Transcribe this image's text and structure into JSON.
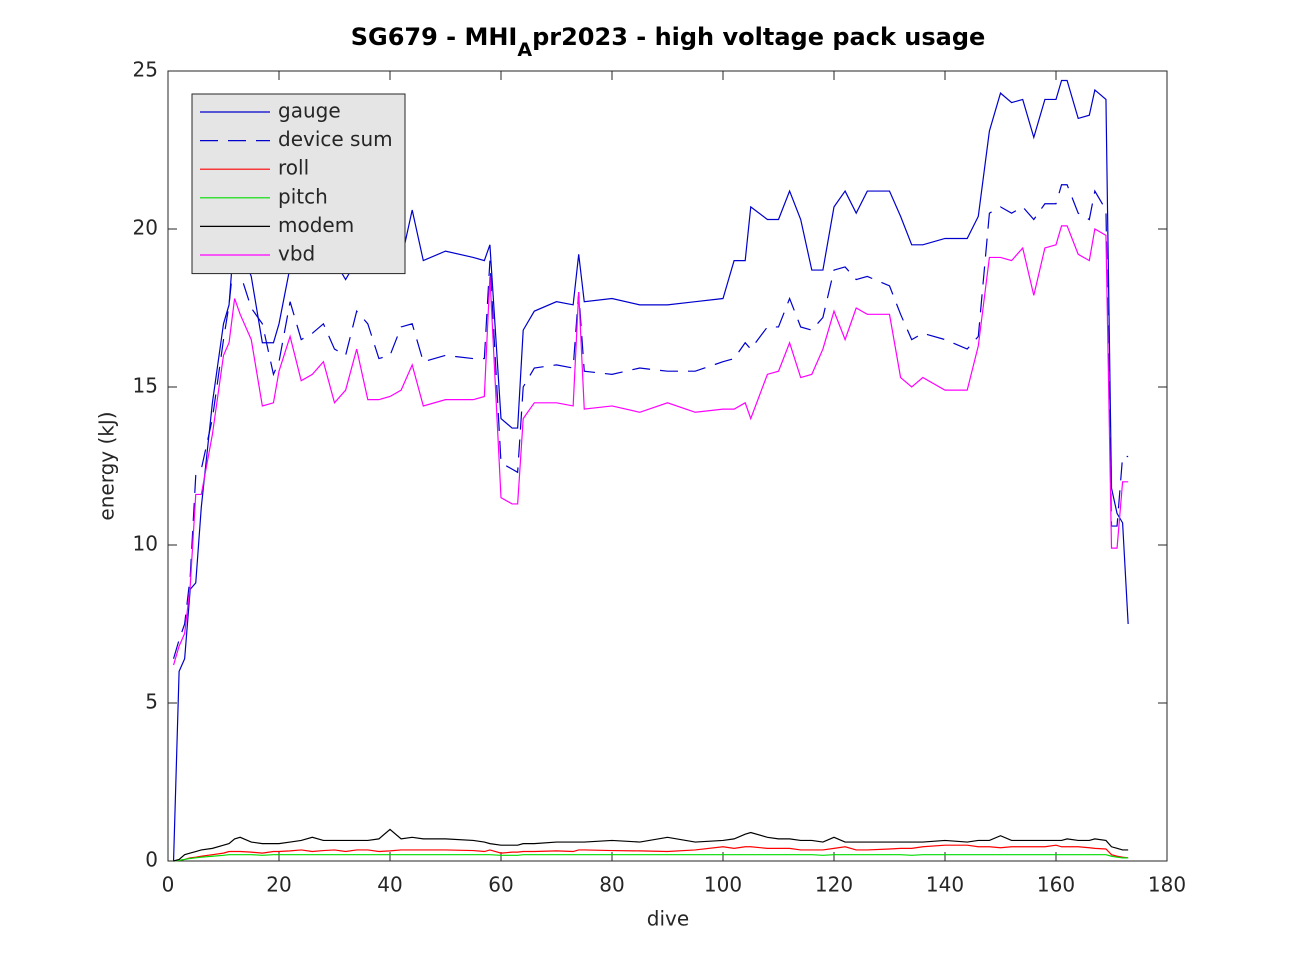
{
  "chart_data": {
    "type": "line",
    "title": [
      "SG679 - MHI",
      "A",
      "pr2023 - high voltage pack usage"
    ],
    "xlabel": "dive",
    "ylabel": "energy (kJ)",
    "xlim": [
      0,
      180
    ],
    "xticks": [
      0,
      20,
      40,
      60,
      80,
      100,
      120,
      140,
      160,
      180
    ],
    "ylim": [
      0,
      25
    ],
    "yticks": [
      0,
      5,
      10,
      15,
      20,
      25
    ],
    "grid": false,
    "legend": "upper left",
    "x": [
      1,
      2,
      3,
      4,
      5,
      6,
      8,
      10,
      11,
      12,
      13,
      15,
      17,
      19,
      20,
      22,
      24,
      26,
      28,
      30,
      32,
      34,
      36,
      38,
      40,
      42,
      44,
      46,
      50,
      55,
      57,
      58,
      60,
      62,
      63,
      64,
      66,
      70,
      73,
      74,
      75,
      80,
      85,
      90,
      95,
      100,
      102,
      104,
      105,
      108,
      110,
      112,
      114,
      116,
      118,
      120,
      122,
      124,
      126,
      130,
      132,
      134,
      136,
      140,
      144,
      146,
      148,
      150,
      152,
      154,
      156,
      158,
      160,
      161,
      162,
      164,
      166,
      167,
      169,
      170,
      171,
      172,
      173
    ],
    "series": [
      {
        "name": "gauge",
        "color": "#0000cc",
        "line_style": "solid",
        "values": [
          0,
          6,
          6.4,
          8.6,
          8.8,
          11.2,
          14.5,
          17,
          17.6,
          19.9,
          19.4,
          18.5,
          16.4,
          16.4,
          17,
          18.8,
          19,
          18.7,
          18.6,
          19,
          18.4,
          19,
          18.6,
          18.7,
          19.2,
          19,
          20.6,
          19,
          19.3,
          19.1,
          19,
          19.5,
          14,
          13.7,
          13.7,
          16.8,
          17.4,
          17.7,
          17.6,
          19.2,
          17.7,
          17.8,
          17.6,
          17.6,
          17.7,
          17.8,
          19,
          19,
          20.7,
          20.3,
          20.3,
          21.2,
          20.3,
          18.7,
          18.7,
          20.7,
          21.2,
          20.5,
          21.2,
          21.2,
          20.4,
          19.5,
          19.5,
          19.7,
          19.7,
          20.4,
          23.1,
          24.3,
          24,
          24.1,
          22.9,
          24.1,
          24.1,
          24.7,
          24.7,
          23.5,
          23.6,
          24.4,
          24.1,
          11.8,
          11,
          10.7,
          7.5
        ]
      },
      {
        "name": "device sum",
        "color": "#0000cc",
        "line_style": "dashed",
        "values": [
          6.4,
          7,
          7.5,
          9,
          12.2,
          12.4,
          14,
          16.5,
          17.6,
          19.3,
          18.6,
          17.5,
          17,
          15.4,
          15.8,
          17.7,
          16.5,
          16.7,
          17,
          16.2,
          16,
          17.4,
          17,
          15.9,
          16,
          16.9,
          17,
          15.8,
          16,
          15.9,
          15.9,
          19,
          12.6,
          12.4,
          12.3,
          15,
          15.6,
          15.7,
          15.6,
          18,
          15.5,
          15.4,
          15.6,
          15.5,
          15.5,
          15.8,
          15.9,
          16.4,
          16.2,
          16.9,
          16.9,
          17.8,
          16.9,
          16.8,
          17.2,
          18.7,
          18.8,
          18.4,
          18.5,
          18.2,
          17.3,
          16.5,
          16.7,
          16.5,
          16.2,
          16.6,
          20.5,
          20.7,
          20.5,
          20.7,
          20.3,
          20.8,
          20.8,
          21.4,
          21.4,
          20.5,
          20.3,
          21.2,
          20.6,
          10.6,
          10.6,
          12.8,
          12.8
        ]
      },
      {
        "name": "roll",
        "color": "#ff0000",
        "line_style": "solid",
        "values": [
          0,
          0.02,
          0.05,
          0.1,
          0.12,
          0.15,
          0.2,
          0.25,
          0.3,
          0.3,
          0.3,
          0.28,
          0.25,
          0.3,
          0.3,
          0.32,
          0.35,
          0.3,
          0.33,
          0.35,
          0.3,
          0.35,
          0.35,
          0.3,
          0.32,
          0.35,
          0.35,
          0.35,
          0.35,
          0.33,
          0.3,
          0.35,
          0.25,
          0.28,
          0.28,
          0.3,
          0.3,
          0.32,
          0.3,
          0.35,
          0.35,
          0.33,
          0.32,
          0.3,
          0.35,
          0.45,
          0.4,
          0.45,
          0.45,
          0.4,
          0.4,
          0.4,
          0.35,
          0.35,
          0.35,
          0.4,
          0.45,
          0.35,
          0.35,
          0.38,
          0.4,
          0.4,
          0.45,
          0.5,
          0.5,
          0.45,
          0.45,
          0.42,
          0.45,
          0.45,
          0.45,
          0.45,
          0.5,
          0.45,
          0.45,
          0.45,
          0.42,
          0.4,
          0.38,
          0.2,
          0.15,
          0.12,
          0.1
        ]
      },
      {
        "name": "pitch",
        "color": "#00dd00",
        "line_style": "solid",
        "values": [
          0,
          0.02,
          0.05,
          0.08,
          0.1,
          0.12,
          0.15,
          0.18,
          0.2,
          0.2,
          0.2,
          0.2,
          0.18,
          0.2,
          0.2,
          0.2,
          0.2,
          0.2,
          0.2,
          0.2,
          0.2,
          0.2,
          0.2,
          0.2,
          0.2,
          0.2,
          0.2,
          0.2,
          0.2,
          0.2,
          0.2,
          0.2,
          0.18,
          0.18,
          0.18,
          0.2,
          0.2,
          0.2,
          0.2,
          0.2,
          0.2,
          0.2,
          0.2,
          0.2,
          0.2,
          0.2,
          0.2,
          0.2,
          0.2,
          0.2,
          0.2,
          0.2,
          0.2,
          0.2,
          0.18,
          0.2,
          0.2,
          0.2,
          0.2,
          0.2,
          0.2,
          0.18,
          0.2,
          0.2,
          0.2,
          0.2,
          0.2,
          0.2,
          0.2,
          0.2,
          0.2,
          0.2,
          0.2,
          0.2,
          0.2,
          0.2,
          0.2,
          0.2,
          0.2,
          0.15,
          0.12,
          0.1,
          0.1
        ]
      },
      {
        "name": "modem",
        "color": "#000000",
        "line_style": "solid",
        "values": [
          0,
          0.05,
          0.2,
          0.25,
          0.3,
          0.35,
          0.4,
          0.5,
          0.55,
          0.7,
          0.75,
          0.6,
          0.55,
          0.55,
          0.55,
          0.6,
          0.65,
          0.75,
          0.65,
          0.65,
          0.65,
          0.65,
          0.65,
          0.7,
          1.0,
          0.7,
          0.75,
          0.7,
          0.7,
          0.65,
          0.6,
          0.55,
          0.5,
          0.5,
          0.5,
          0.55,
          0.55,
          0.6,
          0.6,
          0.6,
          0.6,
          0.65,
          0.6,
          0.75,
          0.6,
          0.65,
          0.7,
          0.85,
          0.9,
          0.75,
          0.7,
          0.7,
          0.65,
          0.65,
          0.6,
          0.75,
          0.6,
          0.6,
          0.6,
          0.6,
          0.6,
          0.6,
          0.6,
          0.65,
          0.6,
          0.65,
          0.65,
          0.8,
          0.65,
          0.65,
          0.65,
          0.65,
          0.65,
          0.65,
          0.7,
          0.65,
          0.65,
          0.7,
          0.65,
          0.45,
          0.4,
          0.35,
          0.35
        ]
      },
      {
        "name": "vbd",
        "color": "#ff00ff",
        "line_style": "solid",
        "values": [
          6.2,
          6.8,
          7.2,
          8.7,
          11.6,
          11.6,
          13.5,
          16,
          16.4,
          17.8,
          17.3,
          16.5,
          14.4,
          14.5,
          15.5,
          16.6,
          15.2,
          15.4,
          15.8,
          14.5,
          14.9,
          16.2,
          14.6,
          14.6,
          14.7,
          14.9,
          15.7,
          14.4,
          14.6,
          14.6,
          14.7,
          18.5,
          11.5,
          11.3,
          11.3,
          14,
          14.5,
          14.5,
          14.4,
          18,
          14.3,
          14.4,
          14.2,
          14.5,
          14.2,
          14.3,
          14.3,
          14.5,
          14,
          15.4,
          15.5,
          16.4,
          15.3,
          15.4,
          16.2,
          17.4,
          16.5,
          17.5,
          17.3,
          17.3,
          15.3,
          15,
          15.3,
          14.9,
          14.9,
          16.3,
          19.1,
          19.1,
          19,
          19.4,
          17.9,
          19.4,
          19.5,
          20.1,
          20.1,
          19.2,
          19,
          20,
          19.8,
          9.9,
          9.9,
          12,
          12
        ]
      }
    ]
  }
}
